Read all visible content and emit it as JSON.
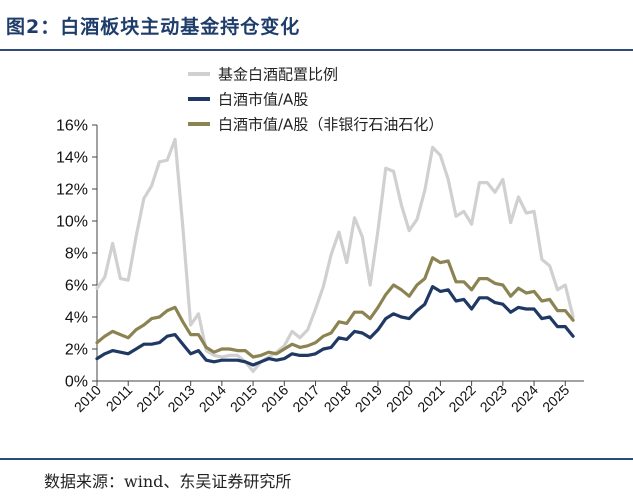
{
  "header": {
    "title": "图2：白酒板块主动基金持仓变化"
  },
  "footer": {
    "source": "数据来源：wind、东吴证券研究所"
  },
  "colors": {
    "title": "#1f3d6b",
    "fund_ratio": "#d0d0d0",
    "share_all": "#1f3864",
    "share_ex": "#8b8452"
  },
  "chart_data": {
    "type": "line",
    "ylim": [
      0,
      16
    ],
    "y_ticks": [
      "0%",
      "2%",
      "4%",
      "6%",
      "8%",
      "10%",
      "12%",
      "14%",
      "16%"
    ],
    "x_ticks": [
      "2010",
      "2011",
      "2012",
      "2013",
      "2014",
      "2015",
      "2016",
      "2017",
      "2018",
      "2019",
      "2020",
      "2021",
      "2022",
      "2023",
      "2024",
      "2025"
    ],
    "x_range": [
      2010,
      2025.6
    ],
    "legend_position": "top-right",
    "series": [
      {
        "name": "基金白酒配置比例",
        "color": "#d0d0d0",
        "points": [
          [
            2010,
            5.8
          ],
          [
            2010.25,
            6.5
          ],
          [
            2010.5,
            8.6
          ],
          [
            2010.75,
            6.4
          ],
          [
            2011,
            6.3
          ],
          [
            2011.25,
            9.0
          ],
          [
            2011.5,
            11.4
          ],
          [
            2011.75,
            12.2
          ],
          [
            2012,
            13.7
          ],
          [
            2012.25,
            13.8
          ],
          [
            2012.5,
            15.1
          ],
          [
            2012.75,
            9.6
          ],
          [
            2013,
            3.5
          ],
          [
            2013.25,
            4.2
          ],
          [
            2013.5,
            1.9
          ],
          [
            2013.75,
            1.6
          ],
          [
            2014,
            1.5
          ],
          [
            2014.25,
            1.6
          ],
          [
            2014.5,
            1.6
          ],
          [
            2014.75,
            1.2
          ],
          [
            2015,
            0.6
          ],
          [
            2015.25,
            1.2
          ],
          [
            2015.5,
            1.5
          ],
          [
            2015.75,
            1.8
          ],
          [
            2016,
            2.2
          ],
          [
            2016.25,
            3.1
          ],
          [
            2016.5,
            2.7
          ],
          [
            2016.75,
            3.2
          ],
          [
            2017,
            4.5
          ],
          [
            2017.25,
            5.9
          ],
          [
            2017.5,
            7.9
          ],
          [
            2017.75,
            9.3
          ],
          [
            2018,
            7.4
          ],
          [
            2018.25,
            10.2
          ],
          [
            2018.5,
            9.0
          ],
          [
            2018.75,
            6.0
          ],
          [
            2019,
            9.4
          ],
          [
            2019.25,
            13.3
          ],
          [
            2019.5,
            13.1
          ],
          [
            2019.75,
            11.0
          ],
          [
            2020,
            9.4
          ],
          [
            2020.25,
            10.1
          ],
          [
            2020.5,
            11.9
          ],
          [
            2020.75,
            14.6
          ],
          [
            2021,
            14.1
          ],
          [
            2021.25,
            12.6
          ],
          [
            2021.5,
            10.3
          ],
          [
            2021.75,
            10.6
          ],
          [
            2022,
            9.8
          ],
          [
            2022.25,
            12.4
          ],
          [
            2022.5,
            12.4
          ],
          [
            2022.75,
            11.8
          ],
          [
            2023,
            12.6
          ],
          [
            2023.25,
            9.9
          ],
          [
            2023.5,
            11.5
          ],
          [
            2023.75,
            10.5
          ],
          [
            2024,
            10.6
          ],
          [
            2024.25,
            7.6
          ],
          [
            2024.5,
            7.2
          ],
          [
            2024.75,
            5.7
          ],
          [
            2025,
            6.0
          ],
          [
            2025.25,
            4.0
          ]
        ]
      },
      {
        "name": "白酒市值/A股",
        "color": "#1f3864",
        "points": [
          [
            2010,
            1.4
          ],
          [
            2010.25,
            1.7
          ],
          [
            2010.5,
            1.9
          ],
          [
            2010.75,
            1.8
          ],
          [
            2011,
            1.7
          ],
          [
            2011.25,
            2.0
          ],
          [
            2011.5,
            2.3
          ],
          [
            2011.75,
            2.3
          ],
          [
            2012,
            2.4
          ],
          [
            2012.25,
            2.8
          ],
          [
            2012.5,
            2.9
          ],
          [
            2012.75,
            2.3
          ],
          [
            2013,
            1.7
          ],
          [
            2013.25,
            1.9
          ],
          [
            2013.5,
            1.3
          ],
          [
            2013.75,
            1.2
          ],
          [
            2014,
            1.3
          ],
          [
            2014.25,
            1.3
          ],
          [
            2014.5,
            1.3
          ],
          [
            2014.75,
            1.2
          ],
          [
            2015,
            1.0
          ],
          [
            2015.25,
            1.2
          ],
          [
            2015.5,
            1.4
          ],
          [
            2015.75,
            1.3
          ],
          [
            2016,
            1.4
          ],
          [
            2016.25,
            1.7
          ],
          [
            2016.5,
            1.6
          ],
          [
            2016.75,
            1.6
          ],
          [
            2017,
            1.7
          ],
          [
            2017.25,
            2.0
          ],
          [
            2017.5,
            2.1
          ],
          [
            2017.75,
            2.7
          ],
          [
            2018,
            2.6
          ],
          [
            2018.25,
            3.1
          ],
          [
            2018.5,
            3.0
          ],
          [
            2018.75,
            2.7
          ],
          [
            2019,
            3.2
          ],
          [
            2019.25,
            3.9
          ],
          [
            2019.5,
            4.2
          ],
          [
            2019.75,
            4.0
          ],
          [
            2020,
            3.9
          ],
          [
            2020.25,
            4.4
          ],
          [
            2020.5,
            4.8
          ],
          [
            2020.75,
            5.9
          ],
          [
            2021,
            5.6
          ],
          [
            2021.25,
            5.7
          ],
          [
            2021.5,
            5.0
          ],
          [
            2021.75,
            5.1
          ],
          [
            2022,
            4.5
          ],
          [
            2022.25,
            5.2
          ],
          [
            2022.5,
            5.2
          ],
          [
            2022.75,
            4.9
          ],
          [
            2023,
            4.8
          ],
          [
            2023.25,
            4.3
          ],
          [
            2023.5,
            4.6
          ],
          [
            2023.75,
            4.5
          ],
          [
            2024,
            4.5
          ],
          [
            2024.25,
            3.9
          ],
          [
            2024.5,
            4.0
          ],
          [
            2024.75,
            3.4
          ],
          [
            2025,
            3.4
          ],
          [
            2025.25,
            2.8
          ]
        ]
      },
      {
        "name": "白酒市值/A股（非银行石油石化）",
        "color": "#8b8452",
        "points": [
          [
            2010,
            2.4
          ],
          [
            2010.25,
            2.8
          ],
          [
            2010.5,
            3.1
          ],
          [
            2010.75,
            2.9
          ],
          [
            2011,
            2.7
          ],
          [
            2011.25,
            3.2
          ],
          [
            2011.5,
            3.5
          ],
          [
            2011.75,
            3.9
          ],
          [
            2012,
            4.0
          ],
          [
            2012.25,
            4.4
          ],
          [
            2012.5,
            4.6
          ],
          [
            2012.75,
            3.7
          ],
          [
            2013,
            2.9
          ],
          [
            2013.25,
            2.9
          ],
          [
            2013.5,
            2.1
          ],
          [
            2013.75,
            1.8
          ],
          [
            2014,
            2.0
          ],
          [
            2014.25,
            2.0
          ],
          [
            2014.5,
            1.9
          ],
          [
            2014.75,
            1.9
          ],
          [
            2015,
            1.5
          ],
          [
            2015.25,
            1.6
          ],
          [
            2015.5,
            1.8
          ],
          [
            2015.75,
            1.7
          ],
          [
            2016,
            2.0
          ],
          [
            2016.25,
            2.3
          ],
          [
            2016.5,
            2.1
          ],
          [
            2016.75,
            2.2
          ],
          [
            2017,
            2.4
          ],
          [
            2017.25,
            2.8
          ],
          [
            2017.5,
            3.0
          ],
          [
            2017.75,
            3.7
          ],
          [
            2018,
            3.6
          ],
          [
            2018.25,
            4.3
          ],
          [
            2018.5,
            4.3
          ],
          [
            2018.75,
            3.9
          ],
          [
            2019,
            4.6
          ],
          [
            2019.25,
            5.4
          ],
          [
            2019.5,
            6.0
          ],
          [
            2019.75,
            5.7
          ],
          [
            2020,
            5.3
          ],
          [
            2020.25,
            6.0
          ],
          [
            2020.5,
            6.4
          ],
          [
            2020.75,
            7.7
          ],
          [
            2021,
            7.4
          ],
          [
            2021.25,
            7.5
          ],
          [
            2021.5,
            6.2
          ],
          [
            2021.75,
            6.2
          ],
          [
            2022,
            5.7
          ],
          [
            2022.25,
            6.4
          ],
          [
            2022.5,
            6.4
          ],
          [
            2022.75,
            6.1
          ],
          [
            2023,
            6.0
          ],
          [
            2023.25,
            5.3
          ],
          [
            2023.5,
            5.8
          ],
          [
            2023.75,
            5.5
          ],
          [
            2024,
            5.6
          ],
          [
            2024.25,
            5.0
          ],
          [
            2024.5,
            5.1
          ],
          [
            2024.75,
            4.4
          ],
          [
            2025,
            4.4
          ],
          [
            2025.25,
            3.8
          ]
        ]
      }
    ]
  }
}
